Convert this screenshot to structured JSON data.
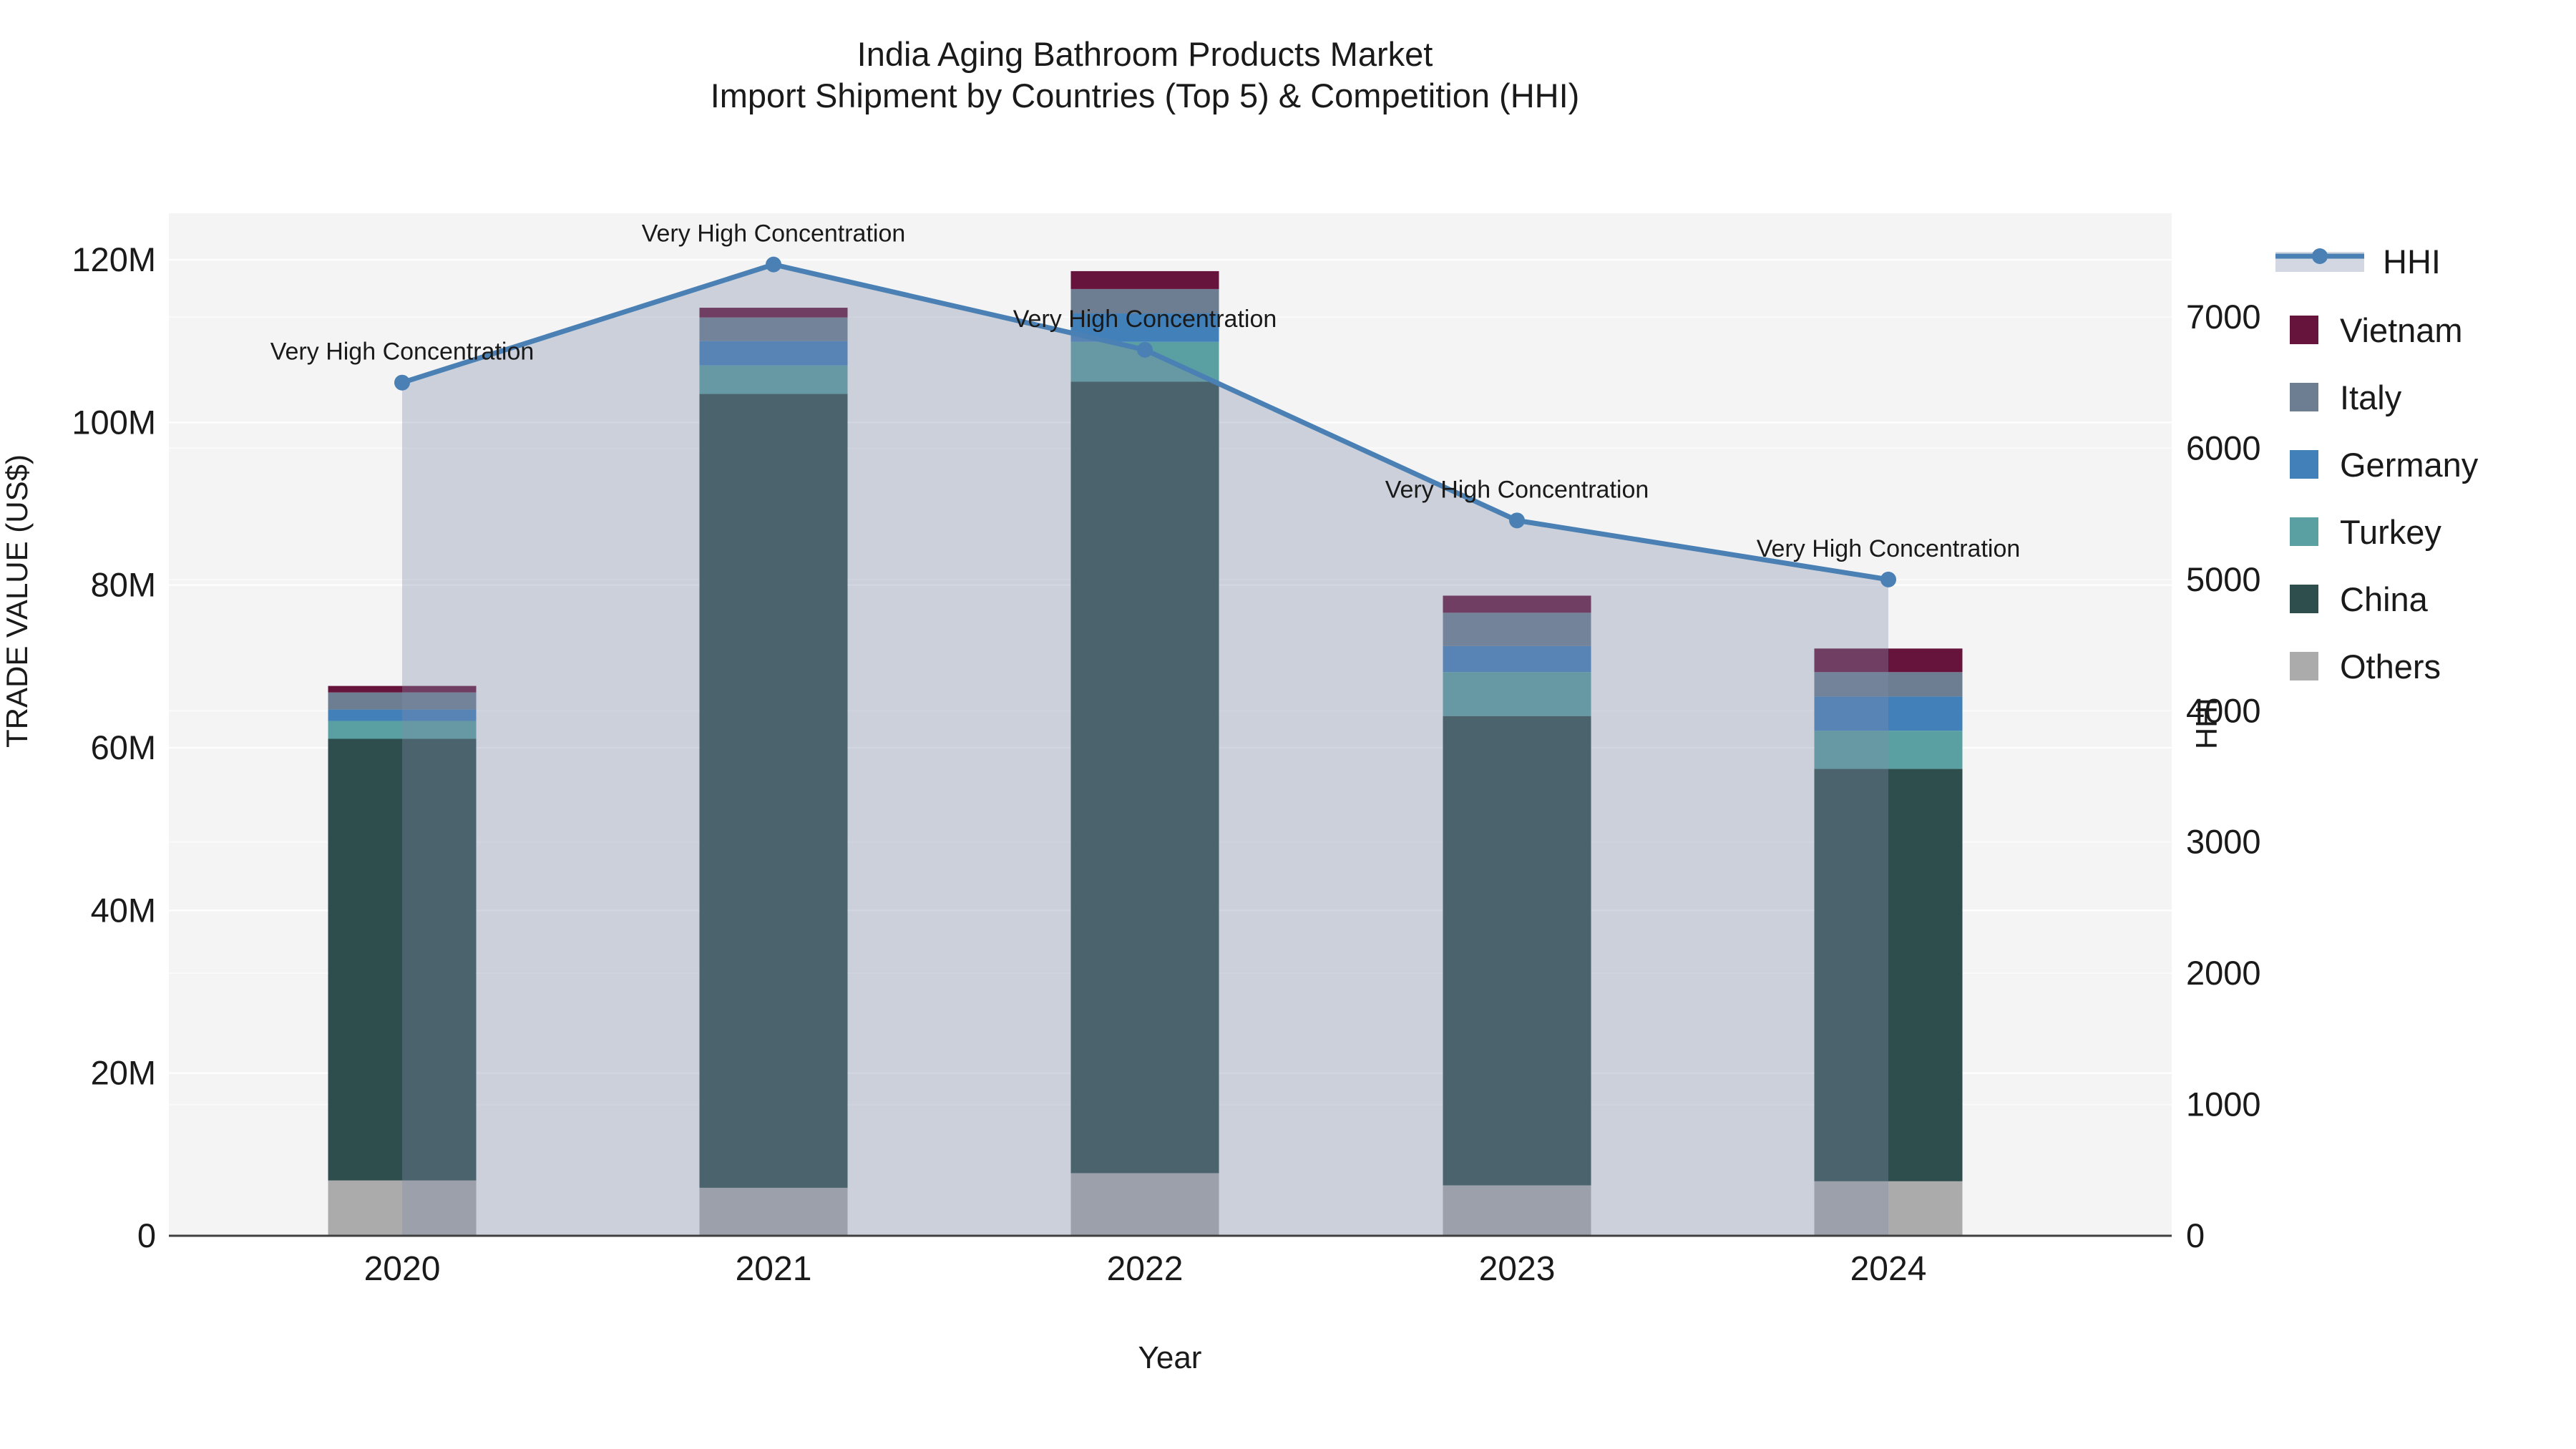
{
  "title": {
    "line1": "India Aging Bathroom Products Market",
    "line2": "Import Shipment by Countries (Top 5) & Competition (HHI)"
  },
  "chart_data": {
    "type": "combo: stacked bar (left axis) + line with area fill (right axis)",
    "categories": [
      "2020",
      "2021",
      "2022",
      "2023",
      "2024"
    ],
    "bar_unit": "millions USD",
    "series": [
      {
        "name": "Others",
        "color": "#ababab",
        "values": [
          6.8,
          5.9,
          7.7,
          6.2,
          6.7
        ]
      },
      {
        "name": "China",
        "color": "#2e4d4d",
        "values": [
          54.3,
          97.6,
          97.3,
          57.7,
          50.7
        ]
      },
      {
        "name": "Turkey",
        "color": "#5aa0a2",
        "values": [
          2.2,
          3.5,
          4.9,
          5.4,
          4.7
        ]
      },
      {
        "name": "Germany",
        "color": "#4280ba",
        "values": [
          1.4,
          3.0,
          3.5,
          3.2,
          4.2
        ]
      },
      {
        "name": "Italy",
        "color": "#6e7e92",
        "values": [
          2.1,
          2.9,
          3.0,
          4.1,
          3.0
        ]
      },
      {
        "name": "Vietnam",
        "color": "#67143c",
        "values": [
          0.8,
          1.2,
          2.2,
          2.1,
          2.9
        ]
      }
    ],
    "bar_totals": [
      67.6,
      114.1,
      118.6,
      78.7,
      72.2
    ],
    "line": {
      "name": "HHI",
      "values": [
        6500,
        7400,
        6750,
        5450,
        5000
      ],
      "color": "#4a80b4",
      "area_fill": "rgba(126,140,168,0.35)"
    },
    "annotations": [
      {
        "text": "Very High Concentration",
        "category": "2020"
      },
      {
        "text": "Very High Concentration",
        "category": "2021"
      },
      {
        "text": "Very High Concentration",
        "category": "2022"
      },
      {
        "text": "Very High Concentration",
        "category": "2023"
      },
      {
        "text": "Very High Concentration",
        "category": "2024"
      }
    ],
    "xlabel": "Year",
    "ylabel_left": "TRADE VALUE (US$)",
    "ylabel_right": "HHI",
    "yticks_left_labels": [
      "0",
      "20M",
      "40M",
      "60M",
      "80M",
      "100M",
      "120M"
    ],
    "yticks_left_values": [
      0,
      20,
      40,
      60,
      80,
      100,
      120
    ],
    "ylim_left": [
      0,
      120
    ],
    "yticks_right_labels": [
      "0",
      "1000",
      "2000",
      "3000",
      "4000",
      "5000",
      "6000",
      "7000"
    ],
    "yticks_right_values": [
      0,
      1000,
      2000,
      3000,
      4000,
      5000,
      6000,
      7000
    ],
    "ylim_right": [
      0,
      7444
    ],
    "grid": "on",
    "plot_background": "#f4f4f5",
    "legend_position": "right"
  },
  "legend": {
    "items": [
      {
        "label": "HHI",
        "type": "line-marker-area",
        "color": "#4a80b4"
      },
      {
        "label": "Vietnam",
        "type": "swatch",
        "color": "#67143c"
      },
      {
        "label": "Italy",
        "type": "swatch",
        "color": "#6e7e92"
      },
      {
        "label": "Germany",
        "type": "swatch",
        "color": "#4280ba"
      },
      {
        "label": "Turkey",
        "type": "swatch",
        "color": "#5aa0a2"
      },
      {
        "label": "China",
        "type": "swatch",
        "color": "#2e4d4d"
      },
      {
        "label": "Others",
        "type": "swatch",
        "color": "#ababab"
      }
    ]
  },
  "colors": {
    "figure_background": "#ffffff",
    "plot_background": "#f4f4f5",
    "gridline": "#ffffff",
    "axis_spine": "#3f3f3f",
    "text": "#1a1a1a"
  }
}
